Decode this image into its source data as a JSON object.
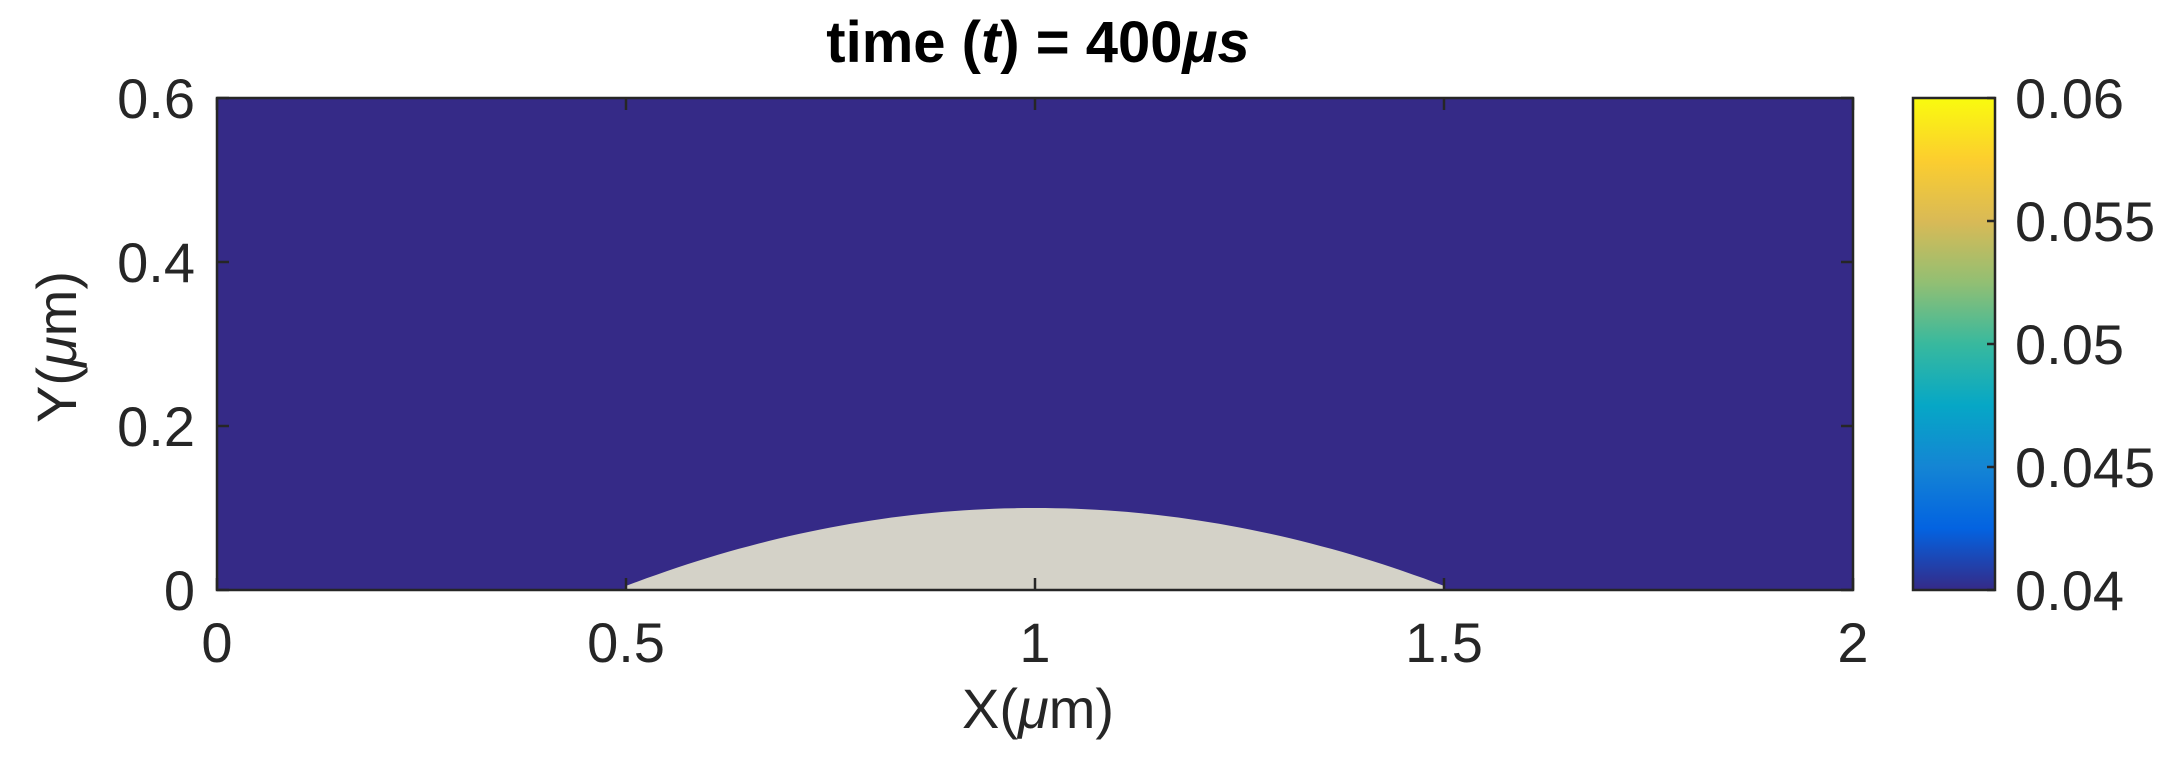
{
  "chart_data": {
    "type": "heatmap",
    "title": {
      "prefix": "time (",
      "var": "t",
      "middle": ") = 400",
      "mu": "μ",
      "unit": "s"
    },
    "xlabel": {
      "pre": "X(",
      "mu": "μ",
      "post": "m)"
    },
    "ylabel": {
      "pre": "Y(",
      "mu": "μ",
      "post": "m)"
    },
    "xlim": [
      0,
      2
    ],
    "ylim": [
      0,
      0.6
    ],
    "xticks": [
      0,
      0.5,
      1,
      1.5,
      2
    ],
    "xtick_labels": [
      "0",
      "0.5",
      "1",
      "1.5",
      "2"
    ],
    "yticks": [
      0,
      0.2,
      0.4,
      0.6
    ],
    "ytick_labels": [
      "0",
      "0.2",
      "0.4",
      "0.6"
    ],
    "field_value": 0.04,
    "field_color": "#352A87",
    "droplet": {
      "shape": "circular cap",
      "x_start": 0.5,
      "x_end": 1.5,
      "apex_x": 1.0,
      "apex_y": 0.1,
      "base_y": 0.005,
      "color": "#D4D2C8"
    },
    "colorbar": {
      "colormap": "parula",
      "range": [
        0.04,
        0.06
      ],
      "ticks": [
        0.04,
        0.045,
        0.05,
        0.055,
        0.06
      ],
      "tick_labels": [
        "0.04",
        "0.045",
        "0.05",
        "0.055",
        "0.06"
      ],
      "colors": [
        "#352A87",
        "#0363E1",
        "#1485D4",
        "#06A7C6",
        "#38B99E",
        "#92BF73",
        "#D9BA56",
        "#FCCE2E",
        "#F9FB0E"
      ]
    }
  }
}
